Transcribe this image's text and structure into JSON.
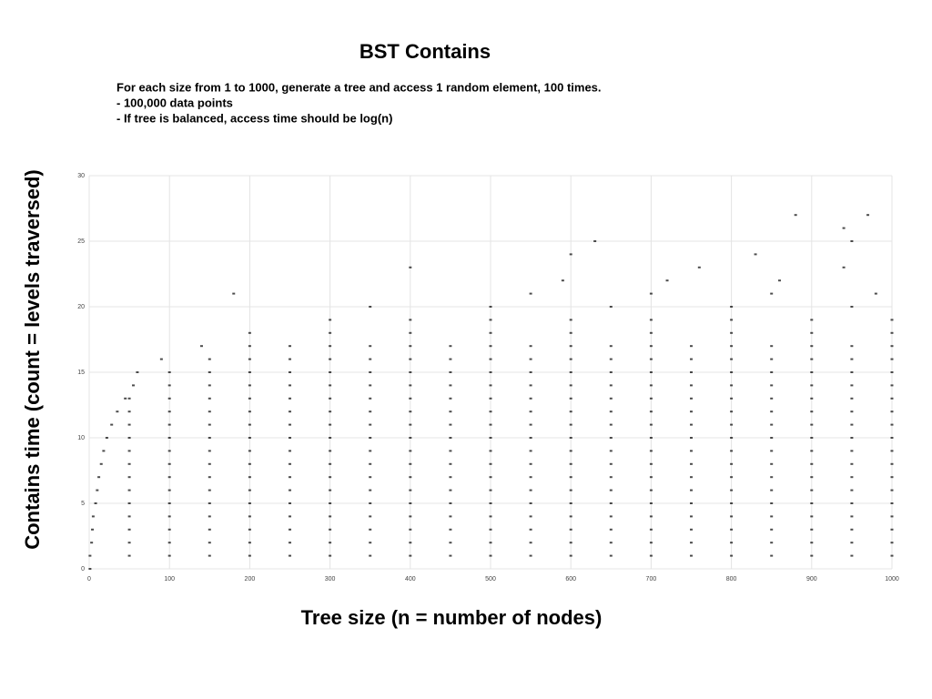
{
  "chart_data": {
    "type": "scatter",
    "title": "BST Contains",
    "subtitle_lines": [
      "For each size from 1 to 1000, generate a tree and access 1 random element, 100 times.",
      "-  100,000 data points",
      "-  If tree is balanced, access time should be log(n)"
    ],
    "x_label": "Tree size (n = number of nodes)",
    "y_label": "Contains time (count = levels traversed)",
    "xlim": [
      0,
      1000
    ],
    "xticks": [
      0,
      100,
      200,
      300,
      400,
      500,
      600,
      700,
      800,
      900,
      1000
    ],
    "ylim": [
      0,
      30
    ],
    "yticks": [
      0,
      5,
      10,
      15,
      20,
      25,
      30
    ],
    "grid": true,
    "color": "#000000",
    "x": [
      1,
      1,
      50,
      100,
      150,
      200,
      250,
      300,
      350,
      400,
      450,
      500,
      550,
      600,
      650,
      700,
      750,
      800,
      850,
      900,
      950,
      1000,
      3,
      50,
      100,
      150,
      200,
      250,
      300,
      350,
      400,
      450,
      500,
      550,
      600,
      650,
      700,
      750,
      800,
      850,
      900,
      950,
      1000,
      4,
      50,
      100,
      150,
      200,
      250,
      300,
      350,
      400,
      450,
      500,
      550,
      600,
      650,
      700,
      750,
      800,
      850,
      900,
      950,
      1000,
      5,
      50,
      100,
      150,
      200,
      250,
      300,
      350,
      400,
      450,
      500,
      550,
      600,
      650,
      700,
      750,
      800,
      850,
      900,
      950,
      1000,
      8,
      50,
      100,
      150,
      200,
      250,
      300,
      350,
      400,
      450,
      500,
      550,
      600,
      650,
      700,
      750,
      800,
      850,
      900,
      950,
      1000,
      10,
      50,
      100,
      150,
      200,
      250,
      300,
      350,
      400,
      450,
      500,
      550,
      600,
      650,
      700,
      750,
      800,
      850,
      900,
      950,
      1000,
      12,
      50,
      100,
      150,
      200,
      250,
      300,
      350,
      400,
      450,
      500,
      550,
      600,
      650,
      700,
      750,
      800,
      850,
      900,
      950,
      1000,
      15,
      50,
      100,
      150,
      200,
      250,
      300,
      350,
      400,
      450,
      500,
      550,
      600,
      650,
      700,
      750,
      800,
      850,
      900,
      950,
      1000,
      18,
      50,
      100,
      150,
      200,
      250,
      300,
      350,
      400,
      450,
      500,
      550,
      600,
      650,
      700,
      750,
      800,
      850,
      900,
      950,
      1000,
      22,
      50,
      100,
      150,
      200,
      250,
      300,
      350,
      400,
      450,
      500,
      550,
      600,
      650,
      700,
      750,
      800,
      850,
      900,
      950,
      1000,
      28,
      50,
      100,
      150,
      200,
      250,
      300,
      350,
      400,
      450,
      500,
      550,
      600,
      650,
      700,
      750,
      800,
      850,
      900,
      950,
      1000,
      35,
      50,
      100,
      150,
      200,
      250,
      300,
      350,
      400,
      450,
      500,
      550,
      600,
      650,
      700,
      750,
      800,
      850,
      900,
      950,
      1000,
      45,
      50,
      100,
      150,
      200,
      250,
      300,
      350,
      400,
      450,
      500,
      550,
      600,
      650,
      700,
      750,
      800,
      850,
      900,
      950,
      1000,
      55,
      100,
      150,
      200,
      250,
      300,
      350,
      400,
      450,
      500,
      550,
      600,
      650,
      700,
      750,
      800,
      850,
      900,
      950,
      1000,
      60,
      100,
      150,
      200,
      250,
      300,
      350,
      400,
      450,
      500,
      550,
      600,
      650,
      700,
      750,
      800,
      850,
      900,
      950,
      1000,
      90,
      150,
      200,
      250,
      300,
      350,
      400,
      450,
      500,
      550,
      600,
      650,
      700,
      750,
      800,
      850,
      900,
      950,
      1000,
      140,
      200,
      250,
      300,
      350,
      400,
      450,
      500,
      550,
      600,
      650,
      700,
      750,
      800,
      850,
      900,
      950,
      1000,
      200,
      300,
      400,
      500,
      600,
      700,
      800,
      900,
      1000,
      300,
      400,
      500,
      600,
      700,
      800,
      900,
      1000,
      350,
      500,
      650,
      800,
      950,
      180,
      550,
      700,
      850,
      980,
      590,
      720,
      860,
      400,
      760,
      940,
      600,
      830,
      630,
      950,
      940,
      880,
      970
    ],
    "y": [
      0,
      1,
      1,
      1,
      1,
      1,
      1,
      1,
      1,
      1,
      1,
      1,
      1,
      1,
      1,
      1,
      1,
      1,
      1,
      1,
      1,
      1,
      2,
      2,
      2,
      2,
      2,
      2,
      2,
      2,
      2,
      2,
      2,
      2,
      2,
      2,
      2,
      2,
      2,
      2,
      2,
      2,
      2,
      3,
      3,
      3,
      3,
      3,
      3,
      3,
      3,
      3,
      3,
      3,
      3,
      3,
      3,
      3,
      3,
      3,
      3,
      3,
      3,
      3,
      4,
      4,
      4,
      4,
      4,
      4,
      4,
      4,
      4,
      4,
      4,
      4,
      4,
      4,
      4,
      4,
      4,
      4,
      4,
      4,
      4,
      5,
      5,
      5,
      5,
      5,
      5,
      5,
      5,
      5,
      5,
      5,
      5,
      5,
      5,
      5,
      5,
      5,
      5,
      5,
      5,
      5,
      6,
      6,
      6,
      6,
      6,
      6,
      6,
      6,
      6,
      6,
      6,
      6,
      6,
      6,
      6,
      6,
      6,
      6,
      6,
      6,
      6,
      7,
      7,
      7,
      7,
      7,
      7,
      7,
      7,
      7,
      7,
      7,
      7,
      7,
      7,
      7,
      7,
      7,
      7,
      7,
      7,
      7,
      8,
      8,
      8,
      8,
      8,
      8,
      8,
      8,
      8,
      8,
      8,
      8,
      8,
      8,
      8,
      8,
      8,
      8,
      8,
      8,
      8,
      9,
      9,
      9,
      9,
      9,
      9,
      9,
      9,
      9,
      9,
      9,
      9,
      9,
      9,
      9,
      9,
      9,
      9,
      9,
      9,
      9,
      10,
      10,
      10,
      10,
      10,
      10,
      10,
      10,
      10,
      10,
      10,
      10,
      10,
      10,
      10,
      10,
      10,
      10,
      10,
      10,
      10,
      11,
      11,
      11,
      11,
      11,
      11,
      11,
      11,
      11,
      11,
      11,
      11,
      11,
      11,
      11,
      11,
      11,
      11,
      11,
      11,
      11,
      12,
      12,
      12,
      12,
      12,
      12,
      12,
      12,
      12,
      12,
      12,
      12,
      12,
      12,
      12,
      12,
      12,
      12,
      12,
      12,
      12,
      13,
      13,
      13,
      13,
      13,
      13,
      13,
      13,
      13,
      13,
      13,
      13,
      13,
      13,
      13,
      13,
      13,
      13,
      13,
      13,
      13,
      14,
      14,
      14,
      14,
      14,
      14,
      14,
      14,
      14,
      14,
      14,
      14,
      14,
      14,
      14,
      14,
      14,
      14,
      14,
      14,
      15,
      15,
      15,
      15,
      15,
      15,
      15,
      15,
      15,
      15,
      15,
      15,
      15,
      15,
      15,
      15,
      15,
      15,
      15,
      15,
      16,
      16,
      16,
      16,
      16,
      16,
      16,
      16,
      16,
      16,
      16,
      16,
      16,
      16,
      16,
      16,
      16,
      16,
      16,
      17,
      17,
      17,
      17,
      17,
      17,
      17,
      17,
      17,
      17,
      17,
      17,
      17,
      17,
      17,
      17,
      17,
      17,
      18,
      18,
      18,
      18,
      18,
      18,
      18,
      18,
      18,
      19,
      19,
      19,
      19,
      19,
      19,
      19,
      19,
      20,
      20,
      20,
      20,
      20,
      21,
      21,
      21,
      21,
      21,
      22,
      22,
      22,
      23,
      23,
      23,
      24,
      24,
      25,
      25,
      26,
      27,
      27
    ]
  }
}
